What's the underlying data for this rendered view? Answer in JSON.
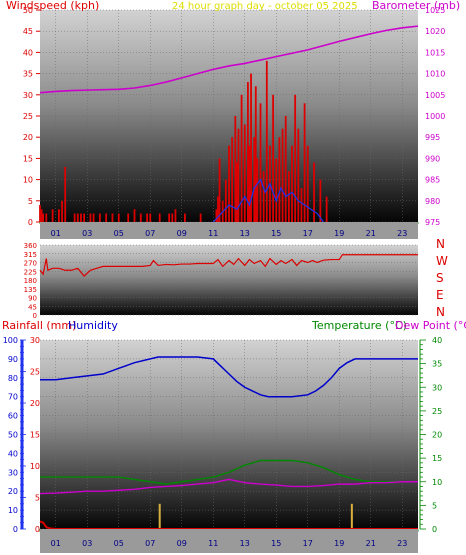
{
  "colors": {
    "windspeed": "#dd0000",
    "barometer": "#cc00cc",
    "direction": "#dd0000",
    "humidity": "#0000cc",
    "temperature": "#008800",
    "dewpoint": "#cc00cc",
    "rain_axis": "#2233ee",
    "temp_axis": "#008800",
    "title": "#dddd00"
  },
  "chart_data": [
    {
      "type": "line",
      "title": "24 hour graph day - october 05 2025",
      "ylabel_left": "Windspeed (kph)",
      "ylabel_right": "Barometer (mb)",
      "yticks_left": [
        "0",
        "5",
        "10",
        "15",
        "20",
        "25",
        "30",
        "35",
        "40",
        "45",
        "50"
      ],
      "yticks_right": [
        "975",
        "980",
        "985",
        "990",
        "995",
        "1000",
        "1005",
        "1010",
        "1015",
        "1020",
        "1025"
      ],
      "xticks": [
        "01",
        "03",
        "05",
        "07",
        "09",
        "11",
        "13",
        "15",
        "17",
        "19",
        "21",
        "23"
      ],
      "ylim_left": [
        0,
        50
      ],
      "ylim_right": [
        975,
        1025
      ],
      "series": [
        {
          "name": "Windspeed (kph)",
          "axis": "left",
          "style": "bars",
          "x": [
            0.0,
            0.1,
            0.2,
            0.4,
            0.8,
            1.2,
            1.4,
            1.6,
            2.2,
            2.4,
            2.6,
            2.8,
            3.2,
            3.4,
            3.8,
            4.2,
            4.6,
            5.0,
            5.6,
            6.0,
            6.4,
            6.8,
            7.0,
            7.6,
            8.2,
            8.4,
            8.6,
            9.2,
            10.2,
            11.2,
            11.3,
            11.4,
            11.6,
            11.8,
            12.0,
            12.2,
            12.4,
            12.5,
            12.6,
            12.8,
            13.0,
            13.2,
            13.3,
            13.4,
            13.6,
            13.7,
            13.8,
            14.0,
            14.2,
            14.4,
            14.6,
            14.8,
            15.0,
            15.2,
            15.4,
            15.6,
            15.8,
            16.0,
            16.2,
            16.4,
            16.6,
            16.8,
            17.0,
            17.4,
            17.8,
            18.2
          ],
          "values": [
            4,
            3,
            2,
            2,
            3,
            3,
            5,
            13,
            2,
            2,
            2,
            2,
            2,
            2,
            2,
            2,
            2,
            2,
            2,
            3,
            2,
            2,
            2,
            2,
            2,
            2,
            3,
            2,
            2,
            3,
            6,
            15,
            5,
            10,
            18,
            20,
            25,
            14,
            22,
            30,
            23,
            33,
            18,
            35,
            20,
            32,
            15,
            28,
            12,
            38,
            18,
            30,
            15,
            20,
            22,
            25,
            12,
            18,
            30,
            22,
            8,
            28,
            18,
            14,
            10,
            6
          ]
        },
        {
          "name": "Barometer (mb)",
          "axis": "right",
          "x": [
            0,
            1,
            2,
            3,
            4,
            5,
            6,
            7,
            8,
            9,
            10,
            11,
            12,
            13,
            14,
            15,
            16,
            17,
            18,
            19,
            20,
            21,
            22,
            23,
            24
          ],
          "values": [
            1005.5,
            1005.8,
            1006.0,
            1006.1,
            1006.2,
            1006.3,
            1006.6,
            1007.2,
            1008.0,
            1009.0,
            1010.0,
            1011.0,
            1011.8,
            1012.4,
            1013.2,
            1014.0,
            1014.8,
            1015.6,
            1016.6,
            1017.6,
            1018.5,
            1019.4,
            1020.2,
            1020.8,
            1021.2
          ]
        },
        {
          "name": "Gust",
          "axis": "left",
          "x": [
            11.0,
            11.5,
            12.0,
            12.5,
            13.0,
            13.3,
            13.6,
            14.0,
            14.3,
            14.6,
            15.0,
            15.3,
            15.6,
            16.0,
            16.4,
            16.8,
            17.2,
            17.6,
            18.0
          ],
          "values": [
            0,
            2,
            4,
            3,
            6,
            4,
            8,
            10,
            7,
            9,
            5,
            8,
            6,
            7,
            5,
            4,
            3,
            2,
            0
          ]
        }
      ]
    },
    {
      "type": "line",
      "ylabel_right": [
        "N",
        "W",
        "S",
        "E",
        "N"
      ],
      "yticks_left": [
        "0",
        "45",
        "90",
        "135",
        "180",
        "225",
        "270",
        "315",
        "360"
      ],
      "ylim": [
        0,
        360
      ],
      "series": [
        {
          "name": "Wind direction",
          "x": [
            0.0,
            0.2,
            0.4,
            0.5,
            0.8,
            1.0,
            1.2,
            1.6,
            2.0,
            2.4,
            2.8,
            3.2,
            3.6,
            4.0,
            4.5,
            5.0,
            5.5,
            6.0,
            6.5,
            7.0,
            7.2,
            7.5,
            8.0,
            8.5,
            9.0,
            9.5,
            10.0,
            10.5,
            11.0,
            11.3,
            11.6,
            12.0,
            12.3,
            12.6,
            13.0,
            13.3,
            13.6,
            14.0,
            14.3,
            14.6,
            15.0,
            15.3,
            15.6,
            16.0,
            16.3,
            16.6,
            17.0,
            17.3,
            17.6,
            18.0,
            18.5,
            19.0,
            19.2,
            19.5,
            20.0,
            21.0,
            22.0,
            23.0,
            24.0
          ],
          "values": [
            230,
            210,
            290,
            230,
            240,
            240,
            240,
            230,
            230,
            240,
            200,
            230,
            240,
            250,
            250,
            250,
            250,
            250,
            250,
            255,
            280,
            255,
            260,
            258,
            262,
            262,
            265,
            265,
            265,
            285,
            250,
            280,
            260,
            290,
            255,
            285,
            265,
            280,
            250,
            290,
            260,
            280,
            265,
            285,
            255,
            280,
            270,
            280,
            270,
            282,
            285,
            285,
            310,
            310,
            310,
            310,
            310,
            310,
            310
          ]
        }
      ]
    },
    {
      "type": "line",
      "ylabel_left_1": "Rainfall (mm)",
      "ylabel_left_2": "Humidity",
      "ylabel_right_1": "Temperature (°C)",
      "ylabel_right_2": "Dew Point (°C)",
      "yticks_humidity": [
        "0",
        "10",
        "20",
        "30",
        "40",
        "50",
        "60",
        "70",
        "80",
        "90",
        "100"
      ],
      "yticks_rain": [
        "0",
        "5",
        "10",
        "15",
        "20",
        "25",
        "30"
      ],
      "yticks_temp": [
        "0",
        "5",
        "10",
        "15",
        "20",
        "25",
        "30",
        "35",
        "40"
      ],
      "xticks": [
        "01",
        "03",
        "05",
        "07",
        "09",
        "11",
        "13",
        "15",
        "17",
        "19",
        "21",
        "23"
      ],
      "ylim_humidity": [
        0,
        100
      ],
      "ylim_rain": [
        0,
        30
      ],
      "ylim_temp": [
        0,
        40
      ],
      "series": [
        {
          "name": "Humidity",
          "axis": "humidity",
          "x": [
            0,
            1,
            2,
            3,
            4,
            5,
            6,
            7,
            7.5,
            8,
            9,
            10,
            11,
            11.5,
            12,
            12.5,
            13,
            13.5,
            14,
            14.5,
            15,
            16,
            17,
            17.5,
            18,
            18.5,
            19,
            19.5,
            20,
            21,
            22,
            23,
            24
          ],
          "values": [
            79,
            79,
            80,
            81,
            82,
            85,
            88,
            90,
            91,
            91,
            91,
            91,
            90,
            86,
            82,
            78,
            75,
            73,
            71,
            70,
            70,
            70,
            71,
            73,
            76,
            80,
            85,
            88,
            90,
            90,
            90,
            90,
            90
          ]
        },
        {
          "name": "Temperature (°C)",
          "axis": "temp",
          "x": [
            0,
            1,
            2,
            3,
            4,
            5,
            6,
            7,
            8,
            9,
            10,
            11,
            12,
            13,
            14,
            15,
            16,
            17,
            18,
            19,
            20,
            21,
            22,
            23,
            24
          ],
          "values": [
            11,
            11,
            11,
            11,
            11,
            11,
            10.5,
            10,
            9.5,
            10,
            10.5,
            11,
            12,
            13.5,
            14.5,
            14.5,
            14.5,
            14,
            13,
            11.5,
            10.5,
            10,
            10,
            10,
            10
          ]
        },
        {
          "name": "Dew Point (°C)",
          "axis": "temp",
          "x": [
            0,
            1,
            2,
            3,
            4,
            5,
            6,
            7,
            8,
            9,
            10,
            11,
            12,
            13,
            14,
            15,
            16,
            17,
            18,
            19,
            20,
            21,
            22,
            23,
            24
          ],
          "values": [
            7.5,
            7.6,
            7.8,
            8,
            8,
            8.2,
            8.4,
            8.8,
            9,
            9.2,
            9.5,
            9.8,
            10.5,
            9.8,
            9.5,
            9.3,
            9,
            9,
            9.2,
            9.5,
            9.5,
            9.8,
            9.8,
            10,
            10
          ]
        },
        {
          "name": "Rainfall (mm)",
          "axis": "rain",
          "x": [
            0,
            0.2,
            0.4,
            0.6,
            1,
            24
          ],
          "values": [
            1.2,
            1.0,
            0.3,
            0.1,
            0,
            0
          ]
        },
        {
          "name": "Rain rate",
          "axis": "rain",
          "style": "bars",
          "x": [
            7.6,
            19.8
          ],
          "values": [
            4,
            4
          ]
        }
      ]
    }
  ]
}
